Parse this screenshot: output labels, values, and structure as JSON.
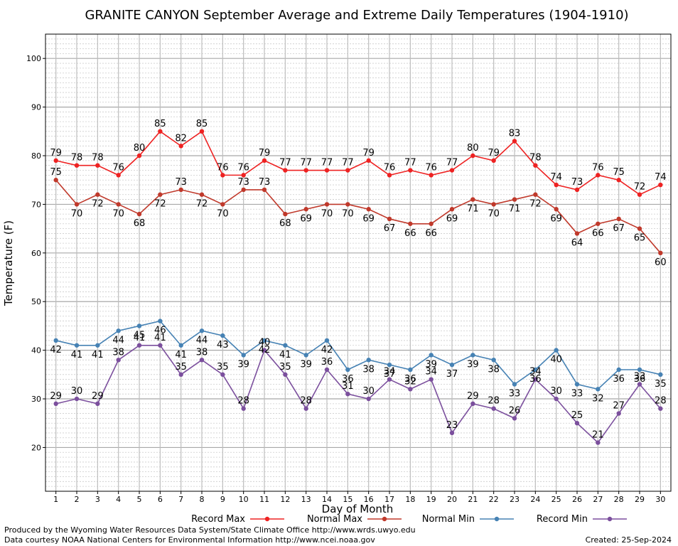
{
  "chart_data": {
    "type": "line",
    "title": "GRANITE CANYON September Average and Extreme Daily Temperatures (1904-1910)",
    "xlabel": "Day of Month",
    "ylabel": "Temperature (F)",
    "xlim": [
      0.5,
      30.5
    ],
    "ylim": [
      11,
      105
    ],
    "yticks": [
      20,
      30,
      40,
      50,
      60,
      70,
      80,
      90,
      100
    ],
    "grid": true,
    "legend_position": "bottom",
    "x": [
      1,
      2,
      3,
      4,
      5,
      6,
      7,
      8,
      9,
      10,
      11,
      12,
      13,
      14,
      15,
      16,
      17,
      18,
      19,
      20,
      21,
      22,
      23,
      24,
      25,
      26,
      27,
      28,
      29,
      30
    ],
    "series": [
      {
        "name": "Record Max",
        "color": "#ee2222",
        "values": [
          79,
          78,
          78,
          76,
          80,
          85,
          82,
          85,
          76,
          76,
          79,
          77,
          77,
          77,
          77,
          79,
          76,
          77,
          76,
          77,
          80,
          79,
          83,
          78,
          74,
          73,
          76,
          75,
          72,
          74
        ]
      },
      {
        "name": "Normal Max",
        "color": "#c0392b",
        "values": [
          75,
          70,
          72,
          70,
          68,
          72,
          73,
          72,
          70,
          73,
          73,
          68,
          69,
          70,
          70,
          69,
          67,
          66,
          66,
          69,
          71,
          70,
          71,
          72,
          69,
          64,
          66,
          67,
          65,
          60
        ]
      },
      {
        "name": "Normal Min",
        "color": "#4682b4",
        "values": [
          42,
          41,
          41,
          44,
          45,
          46,
          41,
          44,
          43,
          39,
          42,
          41,
          39,
          42,
          36,
          38,
          37,
          36,
          39,
          37,
          39,
          38,
          33,
          36,
          40,
          33,
          32,
          36,
          36,
          35
        ]
      },
      {
        "name": "Record Min",
        "color": "#7b4f9d",
        "values": [
          29,
          30,
          29,
          38,
          41,
          41,
          35,
          38,
          35,
          28,
          40,
          35,
          28,
          36,
          31,
          30,
          34,
          32,
          34,
          23,
          29,
          28,
          26,
          34,
          30,
          25,
          21,
          27,
          33,
          28
        ]
      }
    ]
  },
  "credits": {
    "produced_by": "Produced by the Wyoming Water Resources Data System/State Climate Office http://www.wrds.uwyo.edu",
    "data_courtesy": "Data courtesy NOAA National Centers for Environmental Information http://www.ncei.noaa.gov",
    "created": "Created:  25-Sep-2024"
  }
}
